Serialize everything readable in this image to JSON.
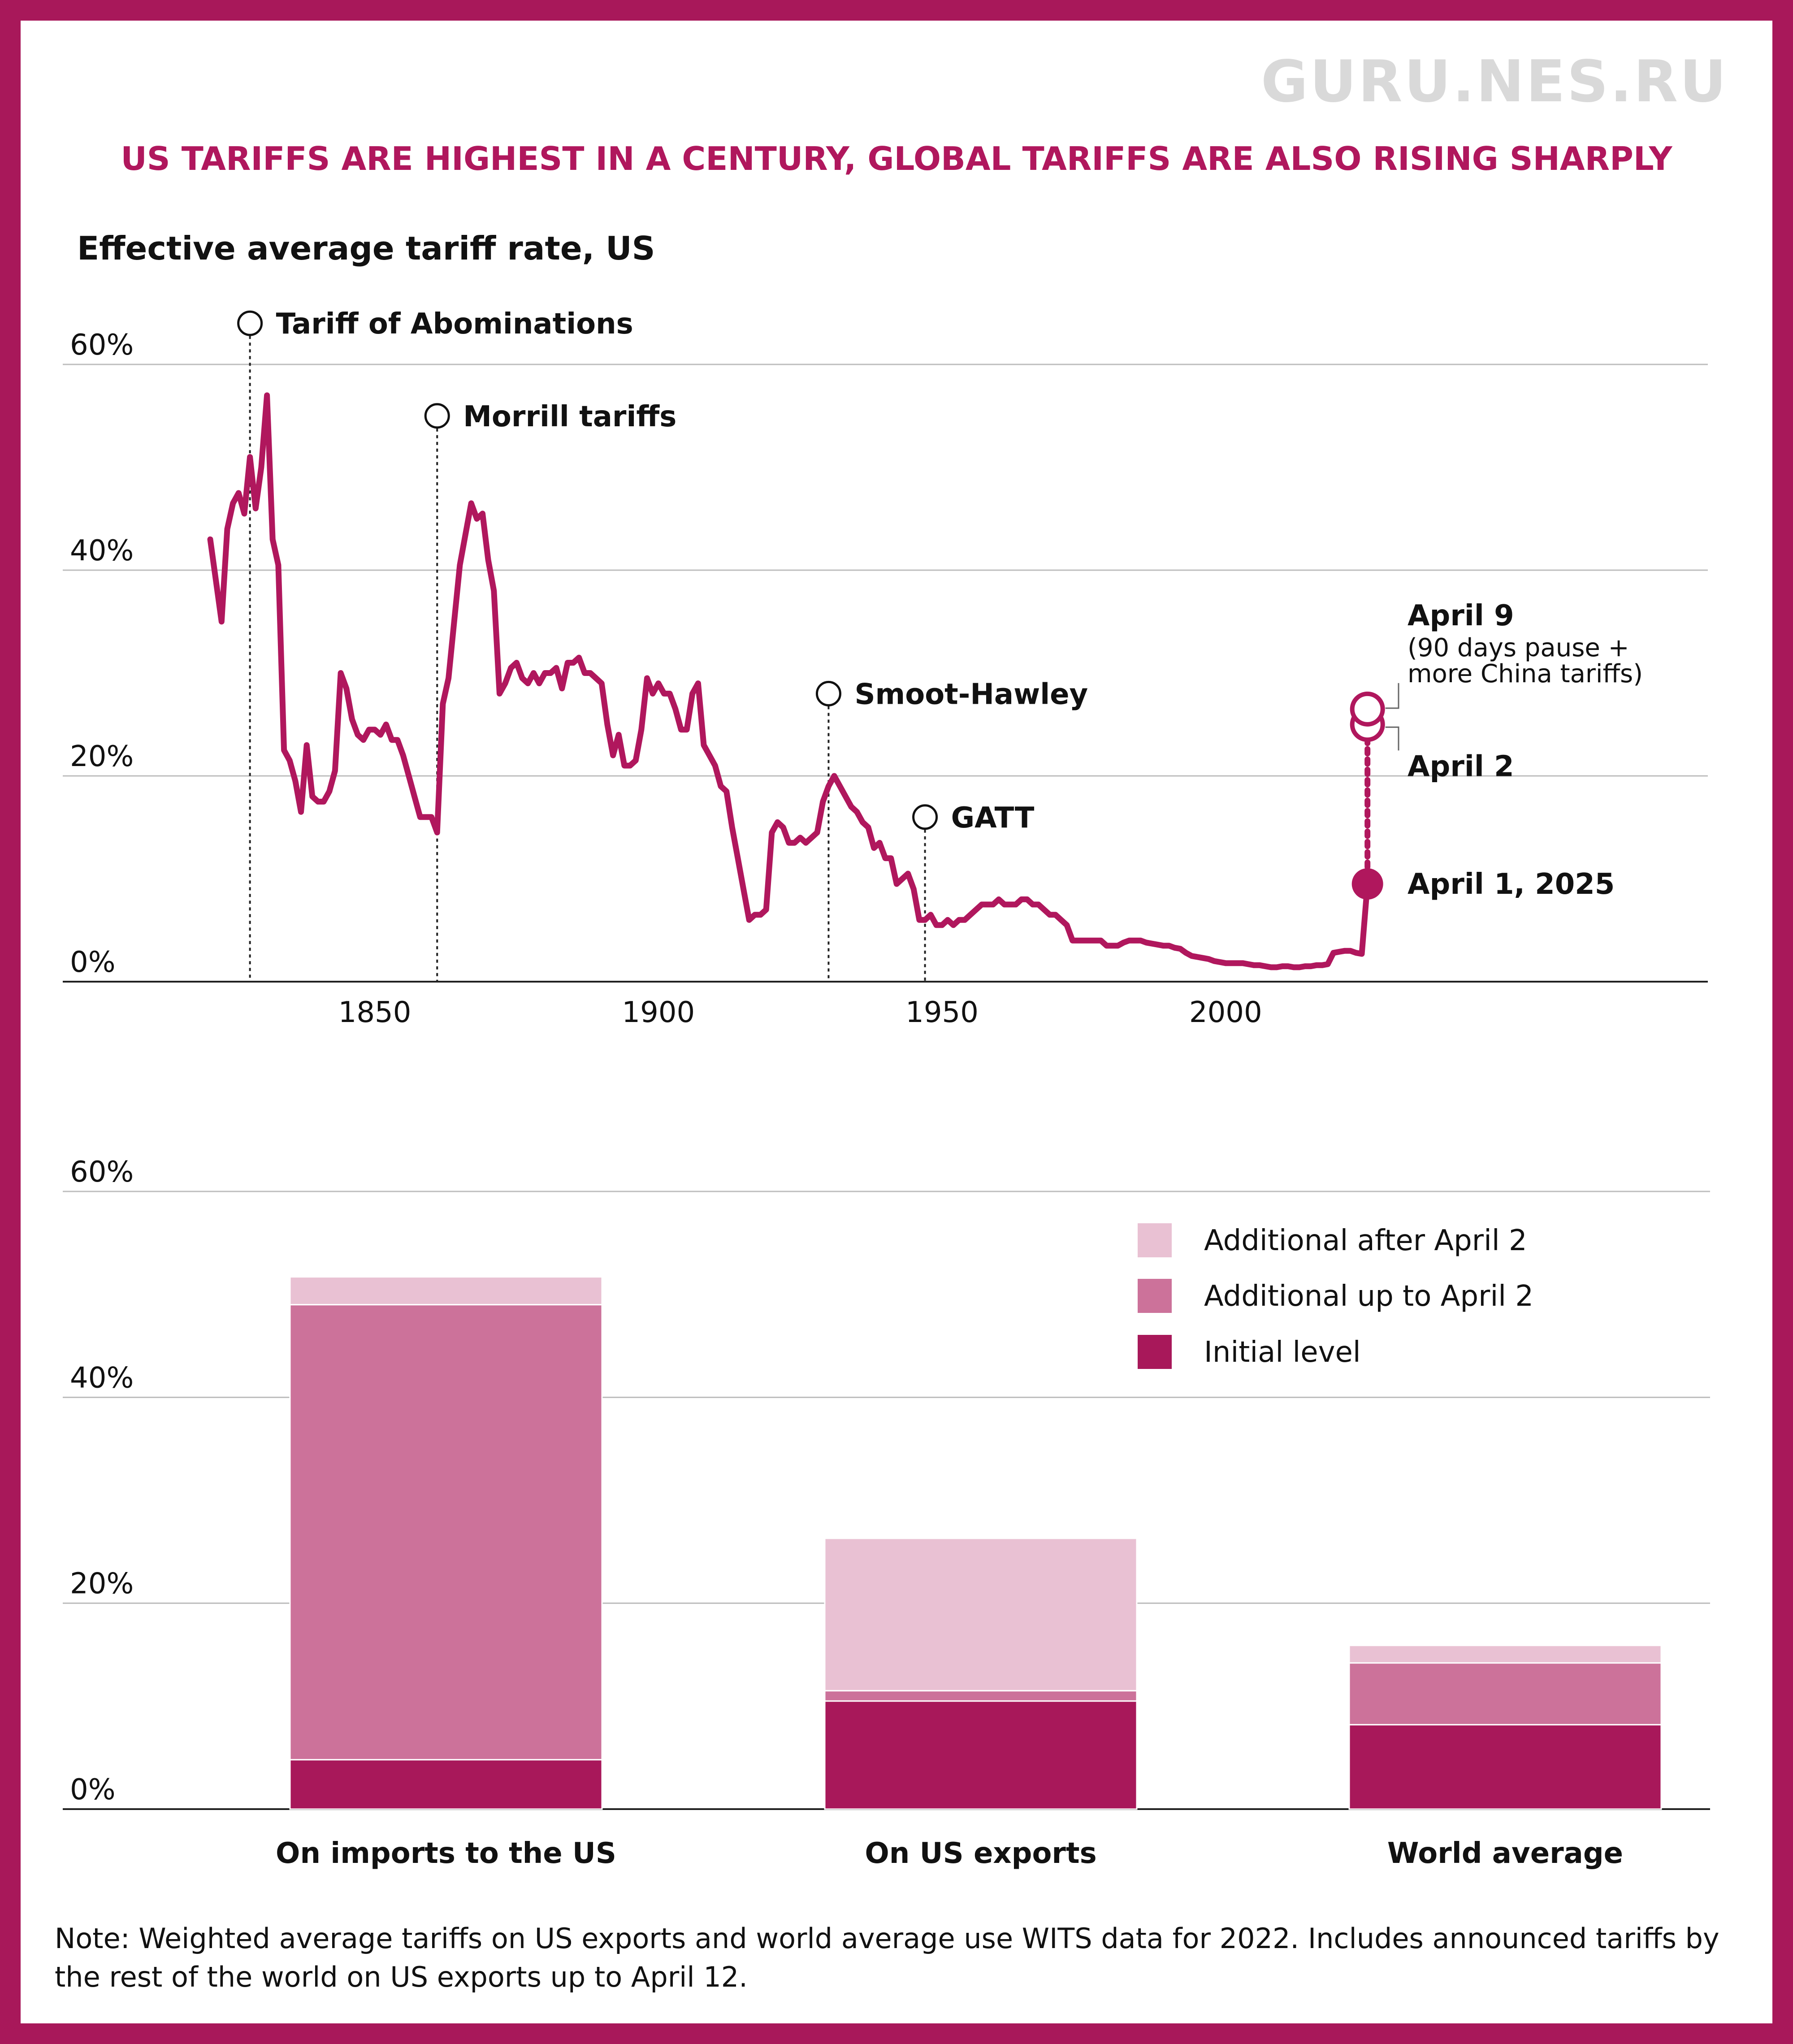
{
  "watermark": "GURU.NES.RU",
  "headline": "US TARIFFS ARE HIGHEST IN A CENTURY, GLOBAL TARIFFS ARE ALSO RISING SHARPLY",
  "colors": {
    "frame": "#a8185a",
    "line": "#b0175d",
    "initial": "#a8185a",
    "up_to": "#cc729a",
    "after": "#e9c1d3",
    "grid": "#bdbdbd"
  },
  "chart_data": [
    {
      "type": "line",
      "title": "Effective average tariff rate, US",
      "xlabel": "",
      "ylabel": "",
      "xlim": [
        1795,
        2085
      ],
      "ylim": [
        0,
        60
      ],
      "x_ticks": [
        1850,
        1900,
        1950,
        2000
      ],
      "x_tick_labels": [
        "1850",
        "1900",
        "1950",
        "2000"
      ],
      "y_ticks": [
        0,
        20,
        40,
        60
      ],
      "y_tick_labels": [
        "0%",
        "20%",
        "40%",
        "60%"
      ],
      "grid": true,
      "series": [
        {
          "name": "Effective average tariff rate, US",
          "points": [
            [
              1821,
              43
            ],
            [
              1823,
              35
            ],
            [
              1824,
              44
            ],
            [
              1825,
              46.5
            ],
            [
              1826,
              47.5
            ],
            [
              1827,
              45.5
            ],
            [
              1828,
              51
            ],
            [
              1829,
              46
            ],
            [
              1830,
              50
            ],
            [
              1831,
              57
            ],
            [
              1832,
              43
            ],
            [
              1833,
              40.5
            ],
            [
              1834,
              22.5
            ],
            [
              1835,
              21.5
            ],
            [
              1836,
              19.5
            ],
            [
              1837,
              16.5
            ],
            [
              1838,
              23
            ],
            [
              1839,
              18
            ],
            [
              1840,
              17.5
            ],
            [
              1841,
              17.5
            ],
            [
              1842,
              18.5
            ],
            [
              1843,
              20.5
            ],
            [
              1844,
              30
            ],
            [
              1845,
              28.5
            ],
            [
              1846,
              25.5
            ],
            [
              1847,
              24
            ],
            [
              1848,
              23.5
            ],
            [
              1849,
              24.5
            ],
            [
              1850,
              24.5
            ],
            [
              1851,
              24
            ],
            [
              1852,
              25
            ],
            [
              1853,
              23.5
            ],
            [
              1854,
              23.5
            ],
            [
              1855,
              22
            ],
            [
              1856,
              20
            ],
            [
              1857,
              18
            ],
            [
              1858,
              16
            ],
            [
              1859,
              16
            ],
            [
              1860,
              16
            ],
            [
              1861,
              14.5
            ],
            [
              1862,
              27
            ],
            [
              1863,
              29.5
            ],
            [
              1864,
              35
            ],
            [
              1865,
              40.5
            ],
            [
              1866,
              43.5
            ],
            [
              1867,
              46.5
            ],
            [
              1868,
              45
            ],
            [
              1869,
              45.5
            ],
            [
              1870,
              41
            ],
            [
              1871,
              38
            ],
            [
              1872,
              28
            ],
            [
              1873,
              29
            ],
            [
              1874,
              30.5
            ],
            [
              1875,
              31
            ],
            [
              1876,
              29.5
            ],
            [
              1877,
              29
            ],
            [
              1878,
              30
            ],
            [
              1879,
              29
            ],
            [
              1880,
              30
            ],
            [
              1881,
              30
            ],
            [
              1882,
              30.5
            ],
            [
              1883,
              28.5
            ],
            [
              1884,
              31
            ],
            [
              1885,
              31
            ],
            [
              1886,
              31.5
            ],
            [
              1887,
              30
            ],
            [
              1888,
              30
            ],
            [
              1889,
              29.5
            ],
            [
              1890,
              29
            ],
            [
              1891,
              25
            ],
            [
              1892,
              22
            ],
            [
              1893,
              24
            ],
            [
              1894,
              21
            ],
            [
              1895,
              21
            ],
            [
              1896,
              21.5
            ],
            [
              1897,
              24.5
            ],
            [
              1898,
              29.5
            ],
            [
              1899,
              28
            ],
            [
              1900,
              29
            ],
            [
              1901,
              28
            ],
            [
              1902,
              28
            ],
            [
              1903,
              26.5
            ],
            [
              1904,
              24.5
            ],
            [
              1905,
              24.5
            ],
            [
              1906,
              28
            ],
            [
              1907,
              29
            ],
            [
              1908,
              23
            ],
            [
              1909,
              22
            ],
            [
              1910,
              21
            ],
            [
              1911,
              19
            ],
            [
              1912,
              18.5
            ],
            [
              1913,
              15
            ],
            [
              1914,
              12
            ],
            [
              1915,
              9
            ],
            [
              1916,
              6
            ],
            [
              1917,
              6.5
            ],
            [
              1918,
              6.5
            ],
            [
              1919,
              7
            ],
            [
              1920,
              14.5
            ],
            [
              1921,
              15.5
            ],
            [
              1922,
              15
            ],
            [
              1923,
              13.5
            ],
            [
              1924,
              13.5
            ],
            [
              1925,
              14
            ],
            [
              1926,
              13.5
            ],
            [
              1927,
              14
            ],
            [
              1928,
              14.5
            ],
            [
              1929,
              17.5
            ],
            [
              1930,
              19
            ],
            [
              1931,
              20
            ],
            [
              1932,
              19
            ],
            [
              1933,
              18
            ],
            [
              1934,
              17
            ],
            [
              1935,
              16.5
            ],
            [
              1936,
              15.5
            ],
            [
              1937,
              15
            ],
            [
              1938,
              13
            ],
            [
              1939,
              13.5
            ],
            [
              1940,
              12
            ],
            [
              1941,
              12
            ],
            [
              1942,
              9.5
            ],
            [
              1943,
              10
            ],
            [
              1944,
              10.5
            ],
            [
              1945,
              9
            ],
            [
              1946,
              6
            ],
            [
              1947,
              6
            ],
            [
              1948,
              6.5
            ],
            [
              1949,
              5.5
            ],
            [
              1950,
              5.5
            ],
            [
              1951,
              6
            ],
            [
              1952,
              5.5
            ],
            [
              1953,
              6
            ],
            [
              1954,
              6
            ],
            [
              1955,
              6.5
            ],
            [
              1956,
              7
            ],
            [
              1957,
              7.5
            ],
            [
              1958,
              7.5
            ],
            [
              1959,
              7.5
            ],
            [
              1960,
              8
            ],
            [
              1961,
              7.5
            ],
            [
              1962,
              7.5
            ],
            [
              1963,
              7.5
            ],
            [
              1964,
              8
            ],
            [
              1965,
              8
            ],
            [
              1966,
              7.5
            ],
            [
              1967,
              7.5
            ],
            [
              1968,
              7
            ],
            [
              1969,
              6.5
            ],
            [
              1970,
              6.5
            ],
            [
              1971,
              6
            ],
            [
              1972,
              5.5
            ],
            [
              1973,
              4
            ],
            [
              1974,
              4
            ],
            [
              1975,
              4
            ],
            [
              1976,
              4
            ],
            [
              1977,
              4
            ],
            [
              1978,
              4
            ],
            [
              1979,
              3.5
            ],
            [
              1980,
              3.5
            ],
            [
              1981,
              3.5
            ],
            [
              1982,
              3.8
            ],
            [
              1983,
              4
            ],
            [
              1984,
              4
            ],
            [
              1985,
              4
            ],
            [
              1986,
              3.8
            ],
            [
              1987,
              3.7
            ],
            [
              1988,
              3.6
            ],
            [
              1989,
              3.5
            ],
            [
              1990,
              3.5
            ],
            [
              1991,
              3.3
            ],
            [
              1992,
              3.2
            ],
            [
              1993,
              2.8
            ],
            [
              1994,
              2.5
            ],
            [
              1995,
              2.4
            ],
            [
              1996,
              2.3
            ],
            [
              1997,
              2.2
            ],
            [
              1998,
              2
            ],
            [
              1999,
              1.9
            ],
            [
              2000,
              1.8
            ],
            [
              2001,
              1.8
            ],
            [
              2002,
              1.8
            ],
            [
              2003,
              1.8
            ],
            [
              2004,
              1.7
            ],
            [
              2005,
              1.6
            ],
            [
              2006,
              1.6
            ],
            [
              2007,
              1.5
            ],
            [
              2008,
              1.4
            ],
            [
              2009,
              1.4
            ],
            [
              2010,
              1.5
            ],
            [
              2011,
              1.5
            ],
            [
              2012,
              1.4
            ],
            [
              2013,
              1.4
            ],
            [
              2014,
              1.5
            ],
            [
              2015,
              1.5
            ],
            [
              2016,
              1.6
            ],
            [
              2017,
              1.6
            ],
            [
              2018,
              1.7
            ],
            [
              2019,
              2.8
            ],
            [
              2020,
              2.9
            ],
            [
              2021,
              3
            ],
            [
              2022,
              3
            ],
            [
              2023,
              2.8
            ],
            [
              2024,
              2.7
            ],
            [
              2025,
              9.5
            ]
          ]
        }
      ],
      "annotations": [
        {
          "label": "Tariff of Abominations",
          "year": 1828,
          "value": 64
        },
        {
          "label": "Morrill tariffs",
          "year": 1861,
          "value": 55
        },
        {
          "label": "Smoot-Hawley",
          "year": 1930,
          "value": 28
        },
        {
          "label": "GATT",
          "year": 1947,
          "value": 16
        }
      ],
      "scenario_points": [
        {
          "label": "April 1, 2025",
          "year": 2025,
          "value": 9.5,
          "note": ""
        },
        {
          "label": "April 2",
          "year": 2025,
          "value": 25,
          "note": ""
        },
        {
          "label": "April 9",
          "year": 2025,
          "value": 26.5,
          "note": "(90 days pause + more China tariffs)"
        }
      ]
    },
    {
      "type": "bar",
      "stacked": true,
      "title": "",
      "xlabel": "",
      "ylabel": "",
      "ylim": [
        0,
        60
      ],
      "y_ticks": [
        0,
        20,
        40,
        60
      ],
      "y_tick_labels": [
        "0%",
        "20%",
        "40%",
        "60%"
      ],
      "grid": true,
      "legend_position": "top-right",
      "categories": [
        "On imports to the US",
        "On US exports",
        "World average"
      ],
      "series": [
        {
          "name": "Initial level",
          "values": [
            4.8,
            10.5,
            8.2
          ]
        },
        {
          "name": "Additional up to April 2",
          "values": [
            44.2,
            1.0,
            6.0
          ]
        },
        {
          "name": "Additional after April 2",
          "values": [
            2.7,
            14.8,
            1.7
          ]
        }
      ],
      "legend": [
        "Additional after April 2",
        "Additional up to April 2",
        "Initial level"
      ]
    }
  ],
  "note": "Note: Weighted average tariffs on US exports and world average use WITS data for 2022. Includes announced tariffs by the rest of the world on US exports up to April 12."
}
